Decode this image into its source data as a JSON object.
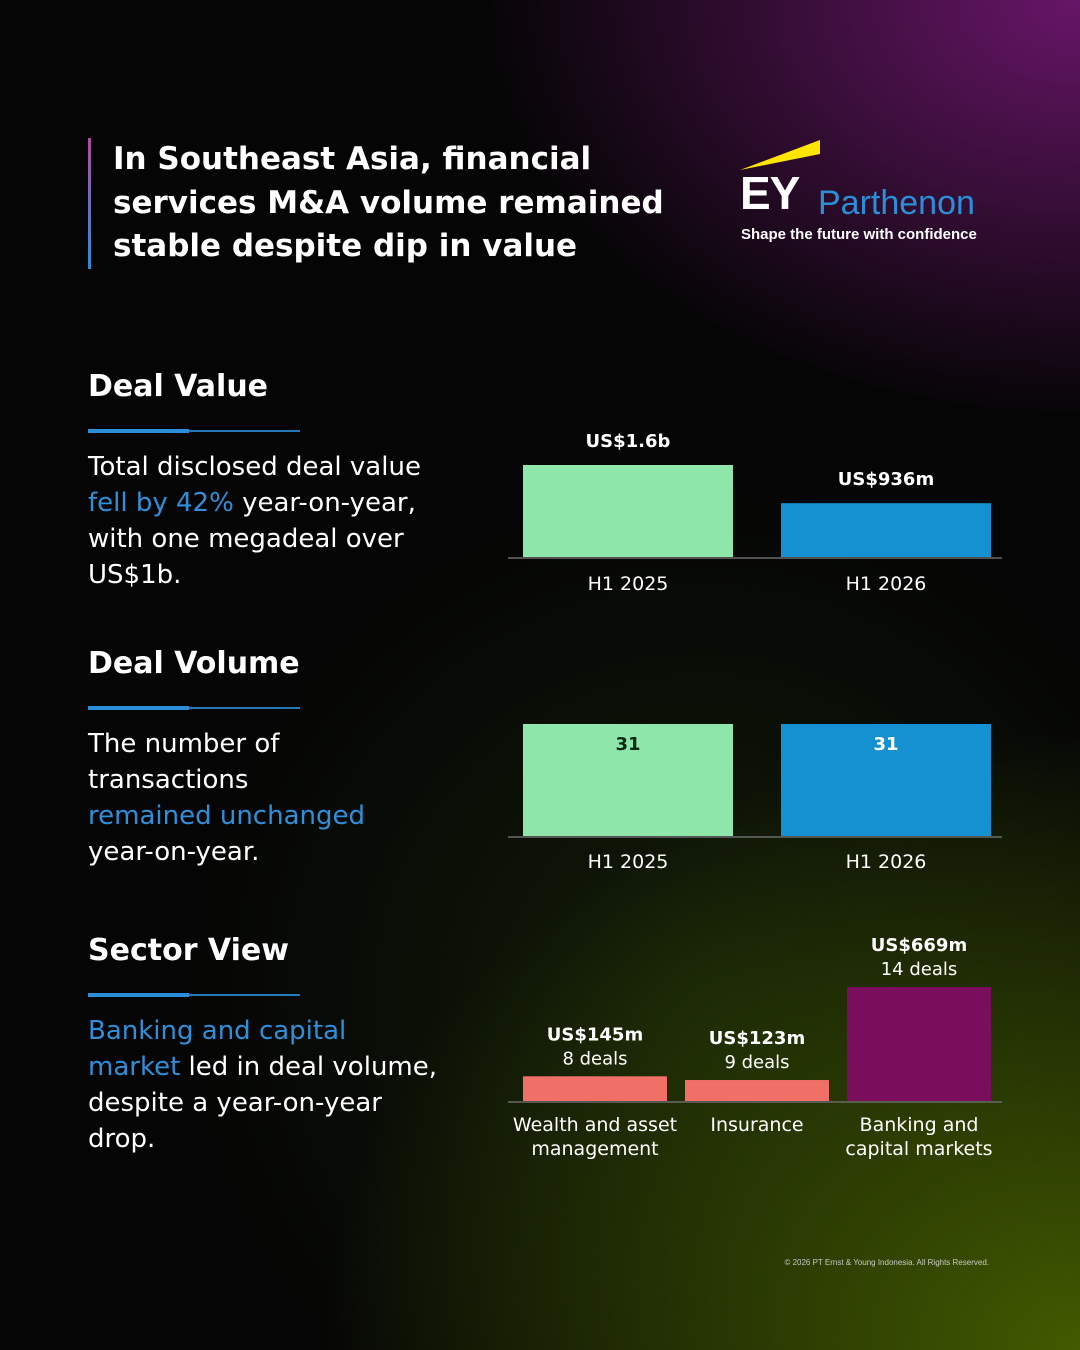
{
  "headline": {
    "line1": "In Southeast Asia, financial",
    "line2": "services M&A volume remained",
    "line3": "stable despite dip in value"
  },
  "logo": {
    "ey": "EY",
    "parthenon": "Parthenon",
    "tagline": "Shape the future with confidence"
  },
  "colors": {
    "h1_2025": "#8ee6aa",
    "h1_2026": "#1591d1",
    "wealth": "#f07068",
    "insurance": "#f07068",
    "banking": "#7a0e5c",
    "accent_blue": "#2e90dc",
    "axis": "#6a6a6a"
  },
  "sections": {
    "deal_value": {
      "title": "Deal Value",
      "desc_pre": "Total disclosed deal value",
      "desc_hl": "fell by 42%",
      "desc_post1": " year-on-year,",
      "desc_post2": "with one megadeal over",
      "desc_post3": "US$1b."
    },
    "deal_volume": {
      "title": "Deal Volume",
      "desc_line1": "The number of",
      "desc_line2": "transactions",
      "desc_hl": "remained unchanged",
      "desc_line4": "year-on-year."
    },
    "sector_view": {
      "title": "Sector View",
      "desc_hl1": "Banking and capital",
      "desc_hl2": "market",
      "desc_post2": " led in deal volume,",
      "desc_line3": "despite a year-on-year",
      "desc_line4": "drop."
    }
  },
  "chart_data": [
    {
      "type": "bar",
      "categories": [
        "H1 2025",
        "H1 2026"
      ],
      "series": [
        {
          "values": [
            1600,
            936
          ]
        }
      ],
      "value_labels": [
        "US$1.6b",
        "US$936m"
      ],
      "ylim": [
        0,
        1600
      ]
    },
    {
      "type": "bar",
      "categories": [
        "H1 2025",
        "H1 2026"
      ],
      "series": [
        {
          "values": [
            31,
            31
          ]
        }
      ],
      "value_labels": [
        "31",
        "31"
      ],
      "ylim": [
        0,
        31
      ]
    },
    {
      "type": "bar",
      "categories": [
        [
          "Wealth and asset",
          "management"
        ],
        [
          "Insurance"
        ],
        [
          "Banking and",
          "capital markets"
        ]
      ],
      "series": [
        {
          "values": [
            145,
            123,
            669
          ]
        }
      ],
      "value_labels": [
        "US$145m",
        "US$123m",
        "US$669m"
      ],
      "deal_labels": [
        "8 deals",
        "9 deals",
        "14 deals"
      ],
      "ylim": [
        0,
        669
      ]
    }
  ],
  "copyright": "© 2026 PT Ernst & Young Indonesia. All Rights Reserved."
}
